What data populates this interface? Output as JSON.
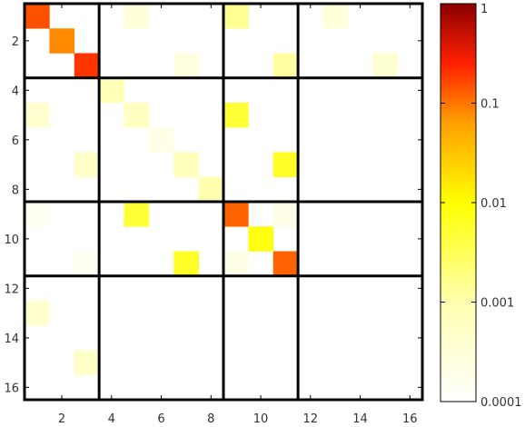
{
  "chart_data": {
    "type": "heatmap",
    "title": "",
    "xlabel": "",
    "ylabel": "",
    "n_rows": 16,
    "n_cols": 16,
    "x_ticks": [
      2,
      4,
      6,
      8,
      10,
      12,
      14,
      16
    ],
    "y_ticks": [
      2,
      4,
      6,
      8,
      10,
      12,
      14,
      16
    ],
    "block_boundaries": [
      3,
      8,
      11
    ],
    "color_scale": "log",
    "colorbar": {
      "min": 0.0001,
      "max": 1,
      "ticks": [
        {
          "value": 1,
          "label": "1"
        },
        {
          "value": 0.1,
          "label": "0.1"
        },
        {
          "value": 0.01,
          "label": "0.01"
        },
        {
          "value": 0.001,
          "label": "0.001"
        },
        {
          "value": 0.0001,
          "label": "0.0001"
        }
      ]
    },
    "colormap": [
      "#ffffff",
      "#ffffb0",
      "#ffff00",
      "#ffa000",
      "#ff2000",
      "#8b0000"
    ],
    "cells": [
      {
        "row": 1,
        "col": 1,
        "value": 0.15
      },
      {
        "row": 1,
        "col": 5,
        "value": 0.0003
      },
      {
        "row": 1,
        "col": 9,
        "value": 0.0015
      },
      {
        "row": 1,
        "col": 13,
        "value": 0.0003
      },
      {
        "row": 2,
        "col": 2,
        "value": 0.08
      },
      {
        "row": 3,
        "col": 3,
        "value": 0.2
      },
      {
        "row": 3,
        "col": 7,
        "value": 0.00025
      },
      {
        "row": 3,
        "col": 11,
        "value": 0.0012
      },
      {
        "row": 3,
        "col": 15,
        "value": 0.00035
      },
      {
        "row": 4,
        "col": 4,
        "value": 0.0008
      },
      {
        "row": 5,
        "col": 1,
        "value": 0.0004
      },
      {
        "row": 5,
        "col": 5,
        "value": 0.0006
      },
      {
        "row": 5,
        "col": 9,
        "value": 0.005
      },
      {
        "row": 6,
        "col": 6,
        "value": 0.0002
      },
      {
        "row": 7,
        "col": 3,
        "value": 0.0005
      },
      {
        "row": 7,
        "col": 7,
        "value": 0.0007
      },
      {
        "row": 7,
        "col": 11,
        "value": 0.006
      },
      {
        "row": 8,
        "col": 8,
        "value": 0.001
      },
      {
        "row": 9,
        "col": 1,
        "value": 0.00015
      },
      {
        "row": 9,
        "col": 5,
        "value": 0.005
      },
      {
        "row": 9,
        "col": 9,
        "value": 0.12
      },
      {
        "row": 9,
        "col": 11,
        "value": 0.0002
      },
      {
        "row": 10,
        "col": 10,
        "value": 0.008
      },
      {
        "row": 11,
        "col": 3,
        "value": 0.00015
      },
      {
        "row": 11,
        "col": 7,
        "value": 0.006
      },
      {
        "row": 11,
        "col": 9,
        "value": 0.0002
      },
      {
        "row": 11,
        "col": 11,
        "value": 0.12
      },
      {
        "row": 13,
        "col": 1,
        "value": 0.0004
      },
      {
        "row": 15,
        "col": 3,
        "value": 0.0005
      }
    ]
  }
}
